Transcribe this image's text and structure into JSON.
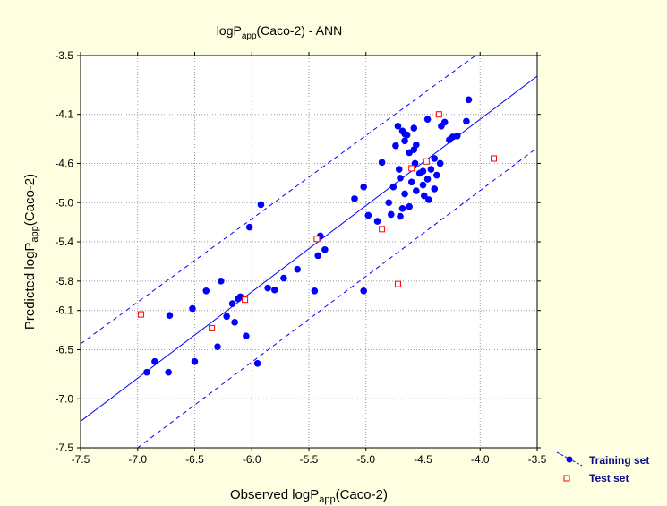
{
  "chart_data": {
    "type": "scatter",
    "title_main": "logP",
    "title_sub": "app",
    "title_rest": "(Caco-2) - ANN",
    "xlabel_main": "Observed logP",
    "xlabel_sub": "app",
    "xlabel_rest": "(Caco-2)",
    "ylabel_main": "Predicted logP",
    "ylabel_sub": "app",
    "ylabel_rest": "(Caco-2)",
    "xlim": [
      -7.5,
      -3.5
    ],
    "ylim": [
      -7.5,
      -3.5
    ],
    "x_ticks": [
      "-7.5",
      "-7.0",
      "-6.5",
      "-6.0",
      "-5.5",
      "-5.0",
      "-4.5",
      "-4.0",
      "-3.5"
    ],
    "x_tick_values": [
      -7.5,
      -7.0,
      -6.5,
      -6.0,
      -5.5,
      -5.0,
      -4.5,
      -4.0,
      -3.5
    ],
    "y_ticks": [
      "-3.5",
      "-4.1",
      "-4.6",
      "-5.0",
      "-5.4",
      "-5.8",
      "-6.1",
      "-6.5",
      "-7.0",
      "-7.5"
    ],
    "y_tick_values": [
      -3.5,
      -4.1,
      -4.6,
      -5.0,
      -5.4,
      -5.8,
      -6.1,
      -6.5,
      -7.0,
      -7.5
    ],
    "grid": true,
    "legend_placement": "bottom-right outside",
    "fit_line": {
      "x1": -7.5,
      "y1": -7.23,
      "x2": -3.5,
      "y2": -3.71
    },
    "band_upper": {
      "x1": -7.5,
      "y1": -6.44,
      "x2": -4.04,
      "y2": -3.5
    },
    "band_lower": {
      "x1": -7.0,
      "y1": -7.5,
      "x2": -3.5,
      "y2": -4.44
    },
    "series": [
      {
        "name": "Training set",
        "color": "#0000ff",
        "marker": "filled-circle",
        "points": [
          [
            -6.92,
            -6.73
          ],
          [
            -6.85,
            -6.62
          ],
          [
            -6.73,
            -6.73
          ],
          [
            -6.72,
            -6.15
          ],
          [
            -6.52,
            -6.08
          ],
          [
            -6.5,
            -6.62
          ],
          [
            -6.4,
            -5.9
          ],
          [
            -6.3,
            -6.47
          ],
          [
            -6.27,
            -5.8
          ],
          [
            -6.22,
            -6.16
          ],
          [
            -6.17,
            -6.03
          ],
          [
            -6.15,
            -6.22
          ],
          [
            -6.12,
            -5.98
          ],
          [
            -6.1,
            -5.96
          ],
          [
            -6.05,
            -6.36
          ],
          [
            -6.02,
            -5.25
          ],
          [
            -5.95,
            -6.64
          ],
          [
            -5.92,
            -5.02
          ],
          [
            -5.86,
            -5.87
          ],
          [
            -5.8,
            -5.89
          ],
          [
            -5.72,
            -5.77
          ],
          [
            -5.6,
            -5.68
          ],
          [
            -5.45,
            -5.9
          ],
          [
            -5.42,
            -5.54
          ],
          [
            -5.4,
            -5.34
          ],
          [
            -5.36,
            -5.48
          ],
          [
            -5.1,
            -4.96
          ],
          [
            -5.02,
            -4.84
          ],
          [
            -5.02,
            -5.9
          ],
          [
            -4.98,
            -5.13
          ],
          [
            -4.9,
            -5.19
          ],
          [
            -4.86,
            -4.59
          ],
          [
            -4.78,
            -5.12
          ],
          [
            -4.74,
            -4.42
          ],
          [
            -4.71,
            -4.66
          ],
          [
            -4.7,
            -4.75
          ],
          [
            -4.68,
            -4.27
          ],
          [
            -4.66,
            -4.37
          ],
          [
            -4.62,
            -4.49
          ],
          [
            -4.6,
            -4.79
          ],
          [
            -4.57,
            -4.6
          ],
          [
            -4.56,
            -4.41
          ],
          [
            -4.53,
            -4.7
          ],
          [
            -4.5,
            -4.82
          ],
          [
            -4.49,
            -4.93
          ],
          [
            -4.46,
            -4.76
          ],
          [
            -4.45,
            -4.97
          ],
          [
            -4.43,
            -4.66
          ],
          [
            -4.4,
            -4.55
          ],
          [
            -4.38,
            -4.72
          ],
          [
            -4.35,
            -4.6
          ],
          [
            -4.34,
            -4.22
          ],
          [
            -4.31,
            -4.18
          ],
          [
            -4.27,
            -4.36
          ],
          [
            -4.24,
            -4.33
          ],
          [
            -4.2,
            -4.32
          ],
          [
            -4.12,
            -4.17
          ],
          [
            -4.1,
            -3.95
          ],
          [
            -4.72,
            -4.22
          ],
          [
            -4.64,
            -4.31
          ],
          [
            -4.58,
            -4.24
          ],
          [
            -4.66,
            -4.3
          ],
          [
            -4.76,
            -4.84
          ],
          [
            -4.66,
            -4.91
          ],
          [
            -4.8,
            -5.0
          ],
          [
            -4.58,
            -4.46
          ],
          [
            -4.46,
            -4.15
          ],
          [
            -4.62,
            -5.04
          ],
          [
            -4.5,
            -4.68
          ],
          [
            -4.56,
            -4.88
          ],
          [
            -4.68,
            -5.06
          ],
          [
            -4.4,
            -4.86
          ],
          [
            -4.7,
            -5.14
          ]
        ]
      },
      {
        "name": "Test set",
        "color": "#ff0000",
        "marker": "open-square",
        "points": [
          [
            -6.97,
            -6.14
          ],
          [
            -6.35,
            -6.28
          ],
          [
            -6.06,
            -5.99
          ],
          [
            -5.43,
            -5.37
          ],
          [
            -4.86,
            -5.27
          ],
          [
            -4.72,
            -5.83
          ],
          [
            -4.6,
            -4.65
          ],
          [
            -4.47,
            -4.58
          ],
          [
            -4.36,
            -4.1
          ],
          [
            -3.88,
            -4.55
          ]
        ]
      }
    ]
  },
  "legend": {
    "items": [
      {
        "label": "Training set"
      },
      {
        "label": "Test set"
      }
    ]
  }
}
